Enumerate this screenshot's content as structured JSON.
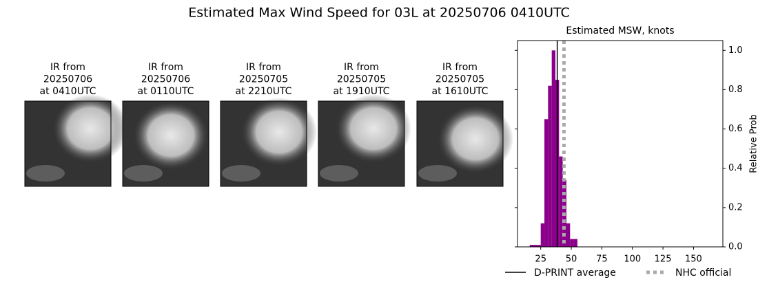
{
  "title": "Estimated Max Wind Speed for 03L at 20250706 0410UTC",
  "panels": [
    {
      "lines": [
        "IR from",
        "20250706",
        "at 0410UTC"
      ]
    },
    {
      "lines": [
        "IR from",
        "20250706",
        "at 0110UTC"
      ]
    },
    {
      "lines": [
        "IR from",
        "20250705",
        "at 2210UTC"
      ]
    },
    {
      "lines": [
        "IR from",
        "20250705",
        "at 1910UTC"
      ]
    },
    {
      "lines": [
        "IR from",
        "20250705",
        "at 1610UTC"
      ]
    }
  ],
  "chart_data": {
    "type": "histogram",
    "title": "Estimated MSW, knots",
    "ylabel": "Relative Prob",
    "bins": [
      16,
      19,
      22,
      25,
      28,
      31,
      34,
      37,
      40,
      43,
      46,
      49,
      52,
      55
    ],
    "values": [
      0.01,
      0.01,
      0.01,
      0.12,
      0.65,
      0.82,
      1.0,
      0.85,
      0.46,
      0.34,
      0.12,
      0.04,
      0.04
    ],
    "color": "#8b008b",
    "xlim": [
      6,
      174
    ],
    "ylim": [
      0,
      1.05
    ],
    "xticks": [
      25,
      50,
      75,
      100,
      125,
      150
    ],
    "yticks": [
      {
        "value": 0,
        "label": "0.0"
      },
      {
        "value": 0.2,
        "label": "0.2"
      },
      {
        "value": 0.4,
        "label": "0.4"
      },
      {
        "value": 0.6,
        "label": "0.6"
      },
      {
        "value": 0.8,
        "label": "0.8"
      },
      {
        "value": 1.0,
        "label": "1.0"
      }
    ],
    "lines": [
      {
        "name": "D-PRINT average",
        "value": 38.5,
        "color": "#000000",
        "style": "solid"
      },
      {
        "name": "NHC official",
        "value": 44,
        "color": "#aaaaaa",
        "style": "dotted"
      }
    ]
  }
}
